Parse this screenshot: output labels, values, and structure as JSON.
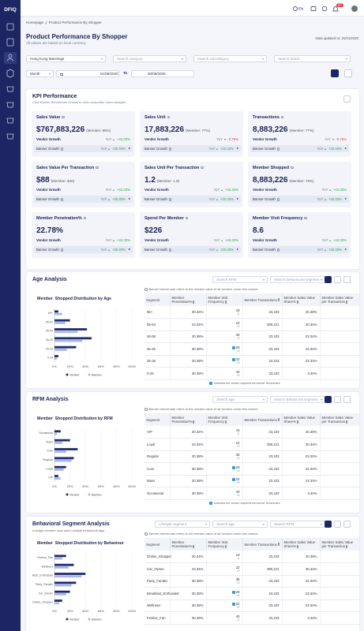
{
  "app": {
    "logo": "DFIQ",
    "lang": "EN",
    "notifications": "99+"
  },
  "breadcrumb": [
    "Homepage",
    "Product Performance By Shopper"
  ],
  "header": {
    "title": "Product Performance By Shopper",
    "subtitle": "All values are based on local currency",
    "updated": "Data updated to: 31/01/2020"
  },
  "filters": {
    "banner": "Hong Kong Mannings",
    "category": "Search category",
    "subcategory": "Search subcategory",
    "brand": "Search brand",
    "period": "Month",
    "from": "01/09/2020",
    "to_label": "To",
    "to": "30/09/2020"
  },
  "kpi": {
    "title": "KPI Performance",
    "subtitle": "Click Banner Benchmark Growth to view competitor brand analysis",
    "vendor_label": "Vendor Growth",
    "banner_label": "Banner Growth",
    "yoy": "YoY",
    "tiles": [
      {
        "label": "Sales Value",
        "value": "$767,883,226",
        "member": "(Member: 88%)",
        "vendor_growth": "+43.33%",
        "banner_growth": "+20.33%"
      },
      {
        "label": "Sales Unit",
        "value": "17,883,226",
        "member": "(Member: 77%)",
        "vendor_growth": "-0.76%",
        "banner_growth": "+20.33%"
      },
      {
        "label": "Transactions",
        "value": "8,883,226",
        "member": "(Member: 77%)",
        "vendor_growth": "-0.76%",
        "banner_growth": "+20.33%"
      },
      {
        "label": "Sales Value Per Transaction",
        "value": "$88",
        "member": "(Member: $40)",
        "vendor_growth": "+43.33%",
        "banner_growth": "+20.33%"
      },
      {
        "label": "Sales Unit Per Transaction",
        "value": "1.2",
        "member": "(Member: 1.8)",
        "vendor_growth": "+43.33%",
        "banner_growth": "+20.33%"
      },
      {
        "label": "Member Shopped",
        "value": "8,883,226",
        "member": "(Member: 78%)",
        "vendor_growth": "+43.33%",
        "banner_growth": "+20.33%"
      },
      {
        "label": "Member Penetration%",
        "value": "22.78%",
        "vendor_growth": "+43.33%",
        "banner_growth": "+20.33%"
      },
      {
        "label": "Spend Per Member",
        "value": "$226",
        "vendor_growth": "+43.33%",
        "banner_growth": "+20.33%"
      },
      {
        "label": "Member Visit Frequency",
        "value": "8.6",
        "vendor_growth": "+43.33%",
        "banner_growth": "+20.33%"
      }
    ]
  },
  "sections": [
    {
      "title": "Age Analysis",
      "controls": [
        "Search RFM",
        "Search behavioural segment"
      ],
      "benchmark_note": "Banner benchmark refers to the median value of all vendors under this banner",
      "footnote": "Indicates the vendor outperforms banner benchmark",
      "table": {
        "columns": [
          "Segment",
          "Member Penetration%",
          "Member Visit Frequency",
          "Member Transactions",
          "Member Sales Value Share%",
          "Member Sales Value per Transaction"
        ],
        "rows": [
          {
            "segment": "65+",
            "penetration": "30.34%",
            "visit": "19",
            "visit_banner": "11",
            "transactions": "23,103",
            "share": "20.38%",
            "flag": false
          },
          {
            "segment": "55-64",
            "penetration": "23.34%",
            "visit": "22",
            "visit_banner": "20",
            "transactions": "390,121",
            "share": "30.34%",
            "flag": false
          },
          {
            "segment": "45-55",
            "penetration": "30.38%",
            "visit": "35",
            "visit_banner": "20",
            "transactions": "23,103",
            "share": "23.34%",
            "flag": false
          },
          {
            "segment": "35-45",
            "penetration": "30.38%",
            "visit": "28",
            "visit_banner": "45",
            "transactions": "23,103",
            "share": "23.34%",
            "flag": true
          },
          {
            "segment": "25-35",
            "penetration": "30.38%",
            "visit": "32",
            "visit_banner": "45",
            "transactions": "23,103",
            "share": "23.34%",
            "flag": true
          },
          {
            "segment": "0-25",
            "penetration": "30.38%",
            "visit": "40",
            "visit_banner": "32",
            "transactions": "23,103",
            "share": "3.34%",
            "flag": false
          }
        ]
      }
    },
    {
      "title": "RFM Analysis",
      "controls": [
        "Search age",
        "Search Behavioral segment"
      ],
      "benchmark_note": "Banner benchmark refers to the median value of all vendors under this banner",
      "footnote": "Indicates the vendor outperforms banner benchmark",
      "table": {
        "columns": [
          "Segment",
          "Member Penetration%",
          "Member Visit Frequency",
          "Member Transactions",
          "Member Sales Value Share%",
          "Member Sales Value per Transaction"
        ],
        "rows": [
          {
            "segment": "VIP",
            "penetration": "30.34%",
            "visit": "19",
            "visit_banner": "11",
            "transactions": "23,103",
            "share": "20.38%",
            "flag": false
          },
          {
            "segment": "Loyal",
            "penetration": "23.34%",
            "visit": "22",
            "visit_banner": "20",
            "transactions": "390,121",
            "share": "30.34%",
            "flag": false
          },
          {
            "segment": "Regular",
            "penetration": "30.38%",
            "visit": "35",
            "visit_banner": "20",
            "transactions": "23,103",
            "share": "23.34%",
            "flag": false
          },
          {
            "segment": "Core",
            "penetration": "30.38%",
            "visit": "28",
            "visit_banner": "45",
            "transactions": "23,103",
            "share": "23.34%",
            "flag": true
          },
          {
            "segment": "Mass",
            "penetration": "30.38%",
            "visit": "32",
            "visit_banner": "45",
            "transactions": "23,103",
            "share": "23.34%",
            "flag": true
          },
          {
            "segment": "Occasional",
            "penetration": "30.38%",
            "visit": "40",
            "visit_banner": "32",
            "transactions": "23,103",
            "share": "3.34%",
            "flag": false
          }
        ]
      }
    },
    {
      "title": "Behavioral Segment Analysis",
      "note": "A single member may have multiple behavioral tags",
      "controls": [
        "Lifestyle segment",
        "Search age",
        "Search RFM"
      ],
      "benchmark_note": "Banner benchmark refers to the median value of all vendors under this banner",
      "table": {
        "columns": [
          "Segment",
          "Member Penetration%",
          "Member Visit Frequency",
          "Member Transactions",
          "Member Sales Value Share%",
          "Member Sales Value per Transaction"
        ],
        "rows": [
          {
            "segment": "Online_Shopper",
            "penetration": "30.34%",
            "visit": "19",
            "visit_banner": "11",
            "transactions": "23,103",
            "share": "20.38%",
            "flag": false
          },
          {
            "segment": "Car_Owner",
            "penetration": "23.34%",
            "visit": "22",
            "visit_banner": "20",
            "transactions": "390,121",
            "share": "30.34%",
            "flag": false
          },
          {
            "segment": "Party_Fanatic",
            "penetration": "30.38%",
            "visit": "35",
            "visit_banner": "20",
            "transactions": "23,103",
            "share": "23.34%",
            "flag": false
          },
          {
            "segment": "Breakfast_Enthusiast",
            "penetration": "30.38%",
            "visit": "28",
            "visit_banner": "45",
            "transactions": "23,103",
            "share": "23.34%",
            "flag": true
          },
          {
            "segment": "Wellness",
            "penetration": "30.38%",
            "visit": "32",
            "visit_banner": "45",
            "transactions": "23,103",
            "share": "23.34%",
            "flag": true
          },
          {
            "segment": "Festive_Fan",
            "penetration": "30.38%",
            "visit": "40",
            "visit_banner": "32",
            "transactions": "23,103",
            "share": "3.34%",
            "flag": false
          }
        ]
      }
    }
  ],
  "chart_data": [
    {
      "type": "bar",
      "orientation": "horizontal",
      "title": "Member  Shopped Distribution by Age",
      "categories": [
        "65+",
        "55-64",
        "45-54",
        "35-44",
        "25-34",
        "0-24"
      ],
      "series": [
        {
          "name": "Vendor",
          "color": "#1f2b6e",
          "values": [
            5,
            20,
            42,
            48,
            28,
            5
          ]
        },
        {
          "name": "Banner",
          "color": "#a9b6e6",
          "values": [
            10,
            14,
            30,
            36,
            16,
            3
          ]
        }
      ],
      "xlim": [
        0,
        100
      ],
      "xticks": [
        {
          "value": 0,
          "label": "0%"
        },
        {
          "value": 20,
          "label": "20%"
        },
        {
          "value": 40,
          "label": "40%"
        },
        {
          "value": 60,
          "label": "60%"
        },
        {
          "value": 80,
          "label": "80%"
        },
        {
          "value": 100,
          "label": "100%"
        }
      ],
      "grid": true
    },
    {
      "type": "bar",
      "orientation": "horizontal",
      "title": "Member  Shopped Distribution by RFM",
      "categories": [
        "Occasional",
        "Mass",
        "Core",
        "Regular",
        "Loyal",
        "VIP"
      ],
      "series": [
        {
          "name": "Vendor",
          "color": "#1f2b6e",
          "values": [
            8,
            20,
            30,
            25,
            15,
            5
          ]
        },
        {
          "name": "Banner",
          "color": "#a9b6e6",
          "values": [
            3,
            10,
            15,
            22,
            12,
            8
          ]
        }
      ],
      "xlim": [
        0,
        100
      ],
      "xticks": [
        {
          "value": 0,
          "label": "0%"
        },
        {
          "value": 20,
          "label": "20%"
        },
        {
          "value": 40,
          "label": "40%"
        },
        {
          "value": 60,
          "label": "60%"
        },
        {
          "value": 80,
          "label": "80%"
        },
        {
          "value": 100,
          "label": "100%"
        }
      ],
      "grid": true
    },
    {
      "type": "bar",
      "orientation": "horizontal",
      "title": "Member  Shopped Distribution by Behaviour",
      "categories": [
        "Festive_Fan",
        "Wellness",
        "Breakfast_Enthusiast",
        "Party_Fanatic",
        "Car_Owner",
        "Online_Shopper"
      ],
      "series": [
        {
          "name": "Vendor",
          "color": "#1f2b6e",
          "values": [
            15,
            25,
            40,
            28,
            20,
            10
          ]
        },
        {
          "name": "Banner",
          "color": "#a9b6e6",
          "values": [
            10,
            18,
            35,
            22,
            15,
            6
          ]
        }
      ],
      "xlim": [
        0,
        100
      ],
      "xticks": [
        {
          "value": 0,
          "label": "0%"
        },
        {
          "value": 20,
          "label": "20%"
        },
        {
          "value": 40,
          "label": "40%"
        },
        {
          "value": 60,
          "label": "60%"
        },
        {
          "value": 80,
          "label": "80%"
        },
        {
          "value": 100,
          "label": "100%"
        }
      ],
      "grid": true
    }
  ]
}
